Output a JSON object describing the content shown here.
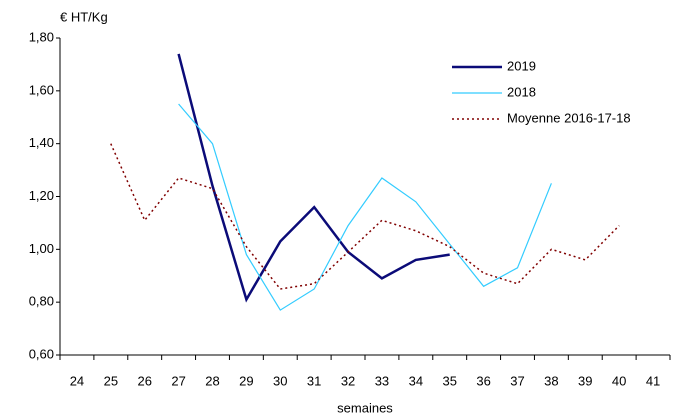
{
  "chart_data": {
    "type": "line",
    "y_label": "€ HT/Kg",
    "x_label": "semaines",
    "categories": [
      "24",
      "25",
      "26",
      "27",
      "28",
      "29",
      "30",
      "31",
      "32",
      "33",
      "34",
      "35",
      "36",
      "37",
      "38",
      "39",
      "40",
      "41"
    ],
    "ylim": [
      0.6,
      1.8
    ],
    "yticks": [
      {
        "value": 0.6,
        "label": "0,60"
      },
      {
        "value": 0.8,
        "label": "0,80"
      },
      {
        "value": 1.0,
        "label": "1,00"
      },
      {
        "value": 1.2,
        "label": "1,20"
      },
      {
        "value": 1.4,
        "label": "1,40"
      },
      {
        "value": 1.6,
        "label": "1,60"
      },
      {
        "value": 1.8,
        "label": "1,80"
      }
    ],
    "grid": false,
    "legend": "top-right",
    "series": [
      {
        "name": "2019",
        "color": "#0b0b78",
        "width": 2.5,
        "style": "solid",
        "values": [
          null,
          null,
          null,
          1.74,
          1.24,
          0.81,
          1.03,
          1.16,
          0.99,
          0.89,
          0.96,
          0.98,
          null,
          null,
          null,
          null,
          null,
          null
        ]
      },
      {
        "name": "2018",
        "color": "#33ccff",
        "width": 1.2,
        "style": "solid",
        "values": [
          null,
          null,
          null,
          1.55,
          1.4,
          0.98,
          0.77,
          0.85,
          1.09,
          1.27,
          1.18,
          1.02,
          0.86,
          0.93,
          1.25,
          null,
          null,
          null
        ]
      },
      {
        "name": "Moyenne 2016-17-18",
        "color": "#800000",
        "width": 1.5,
        "style": "dotted",
        "values": [
          null,
          1.4,
          1.11,
          1.27,
          1.23,
          1.01,
          0.85,
          0.87,
          0.99,
          1.11,
          1.07,
          1.01,
          0.91,
          0.87,
          1.0,
          0.96,
          1.09,
          null
        ]
      }
    ]
  }
}
